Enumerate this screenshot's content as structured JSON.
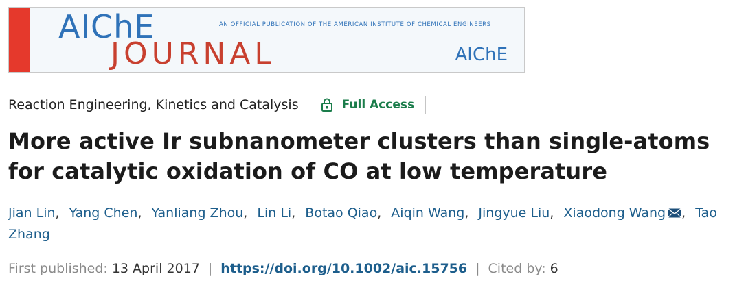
{
  "banner": {
    "logo_top": "AIChE",
    "logo_bottom": "JOURNAL",
    "tagline": "An Official Publication of the American Institute of Chemical Engineers",
    "brand": "AIChE",
    "colors": {
      "blue": "#2f72b8",
      "red": "#c8402f",
      "stripe": "#e5392c"
    }
  },
  "section": {
    "name": "Reaction Engineering, Kinetics and Catalysis",
    "access_label": "Full Access",
    "access_icon": "lock-icon"
  },
  "article": {
    "title": "More active Ir subnanometer clusters than single-atoms for catalytic oxidation of CO at low temperature"
  },
  "authors": [
    {
      "name": "Jian Lin"
    },
    {
      "name": "Yang Chen"
    },
    {
      "name": "Yanliang Zhou"
    },
    {
      "name": "Lin Li"
    },
    {
      "name": "Botao Qiao"
    },
    {
      "name": "Aiqin Wang"
    },
    {
      "name": "Jingyue Liu"
    },
    {
      "name": "Xiaodong Wang",
      "icon": "mail-icon"
    },
    {
      "name": "Tao Zhang"
    }
  ],
  "publication": {
    "first_published_label": "First published:",
    "first_published_date": "13 April 2017",
    "doi": "https://doi.org/10.1002/aic.15756",
    "cited_label": "Cited by:",
    "cited_count": "6"
  }
}
